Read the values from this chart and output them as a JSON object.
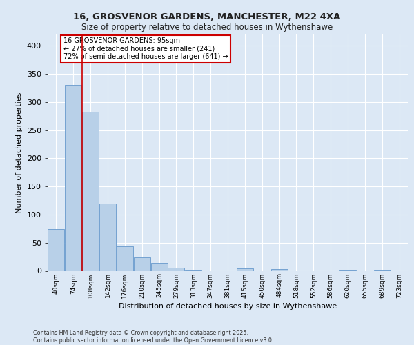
{
  "title_line1": "16, GROSVENOR GARDENS, MANCHESTER, M22 4XA",
  "title_line2": "Size of property relative to detached houses in Wythenshawe",
  "xlabel": "Distribution of detached houses by size in Wythenshawe",
  "ylabel": "Number of detached properties",
  "bin_labels": [
    "40sqm",
    "74sqm",
    "108sqm",
    "142sqm",
    "176sqm",
    "210sqm",
    "245sqm",
    "279sqm",
    "313sqm",
    "347sqm",
    "381sqm",
    "415sqm",
    "450sqm",
    "484sqm",
    "518sqm",
    "552sqm",
    "586sqm",
    "620sqm",
    "655sqm",
    "689sqm",
    "723sqm"
  ],
  "bar_values": [
    74,
    330,
    283,
    120,
    43,
    24,
    14,
    5,
    1,
    0,
    0,
    4,
    0,
    3,
    0,
    0,
    0,
    1,
    0,
    1,
    0
  ],
  "bar_color": "#b8d0e8",
  "bar_edge_color": "#6699cc",
  "annotation_text": "16 GROSVENOR GARDENS: 95sqm\n← 27% of detached houses are smaller (241)\n72% of semi-detached houses are larger (641) →",
  "annotation_box_color": "#ffffff",
  "annotation_box_edge": "#cc0000",
  "background_color": "#dce8f5",
  "plot_background": "#dce8f5",
  "grid_color": "#ffffff",
  "yticks": [
    0,
    50,
    100,
    150,
    200,
    250,
    300,
    350,
    400
  ],
  "ylim": [
    0,
    420
  ],
  "red_line_x": 1.5,
  "footer": "Contains HM Land Registry data © Crown copyright and database right 2025.\nContains public sector information licensed under the Open Government Licence v3.0.",
  "red_line_color": "#cc0000"
}
